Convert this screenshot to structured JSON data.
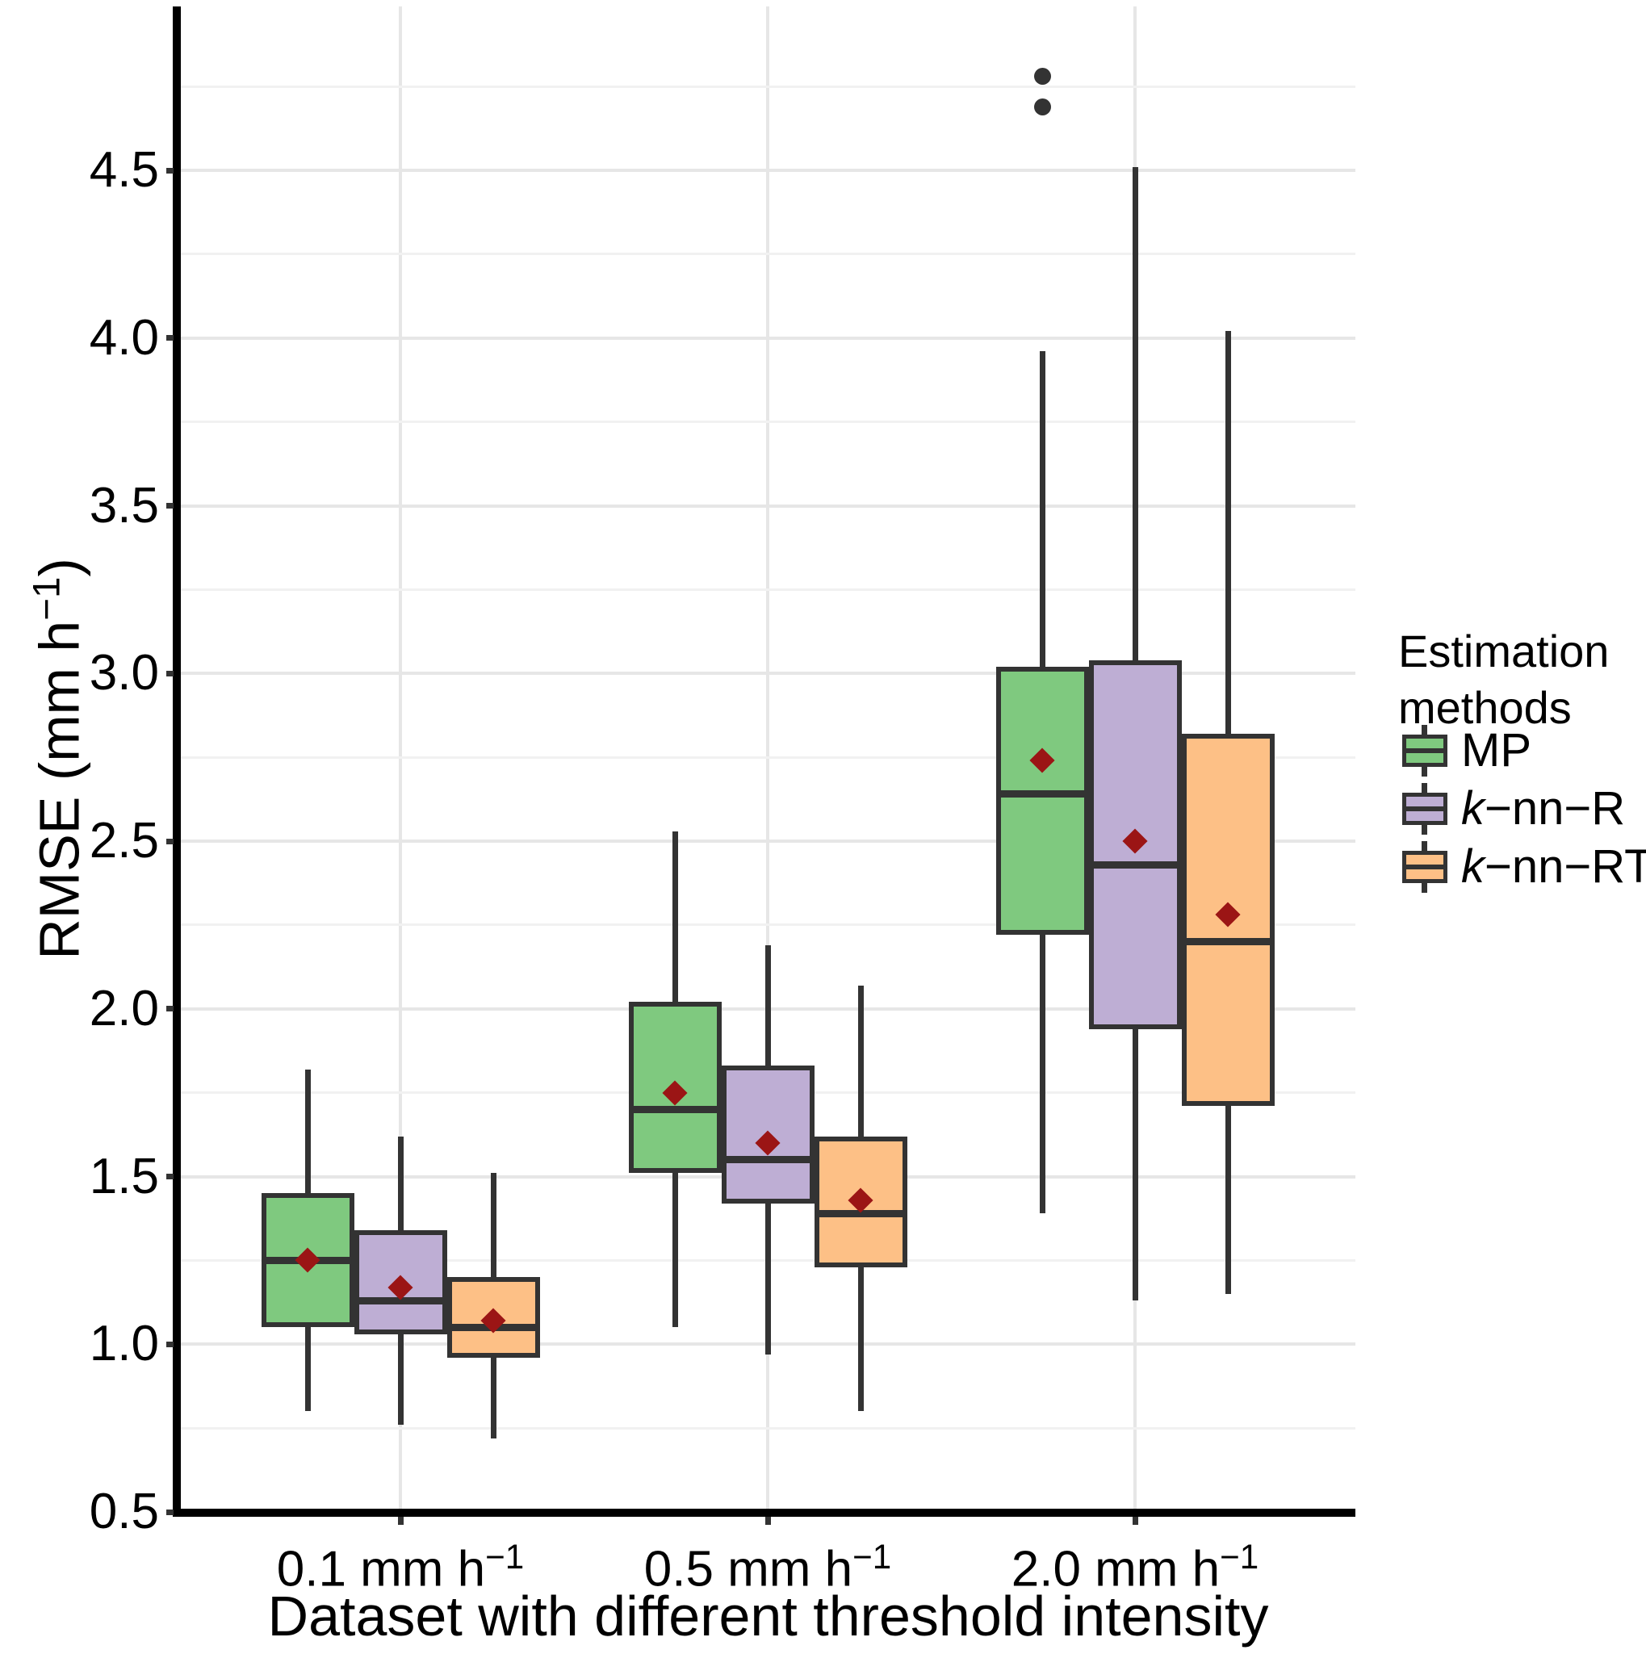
{
  "chart_data": {
    "type": "boxplot",
    "title": "",
    "xlabel": "Dataset with different threshold intensity",
    "ylabel": "RMSE  (mm h−1)",
    "ylabel_parts": {
      "base": "RMSE  (mm h",
      "sup": "−1",
      "end": ")"
    },
    "ylim": [
      0.5,
      5.0
    ],
    "yticks": [
      0.5,
      1.0,
      1.5,
      2.0,
      2.5,
      3.0,
      3.5,
      4.0,
      4.5
    ],
    "grid": true,
    "legend_position": "right",
    "x_categories": [
      {
        "base": "0.1 mm h",
        "sup": "−1"
      },
      {
        "base": "0.5 mm h",
        "sup": "−1"
      },
      {
        "base": "2.0 mm h",
        "sup": "−1"
      }
    ],
    "series": [
      {
        "name": "MP",
        "color": "#7FC97F",
        "boxes": [
          {
            "lo": 0.8,
            "q1": 1.05,
            "med": 1.25,
            "q3": 1.45,
            "hi": 1.82,
            "mean": 1.25,
            "outliers": []
          },
          {
            "lo": 1.05,
            "q1": 1.51,
            "med": 1.7,
            "q3": 2.02,
            "hi": 2.53,
            "mean": 1.75,
            "outliers": []
          },
          {
            "lo": 1.39,
            "q1": 2.22,
            "med": 2.64,
            "q3": 3.02,
            "hi": 3.96,
            "mean": 2.74,
            "outliers": [
              4.69,
              4.78
            ]
          }
        ]
      },
      {
        "name": "k−nn−R",
        "color": "#BEAED4",
        "boxes": [
          {
            "lo": 0.76,
            "q1": 1.03,
            "med": 1.13,
            "q3": 1.34,
            "hi": 1.62,
            "mean": 1.17,
            "outliers": []
          },
          {
            "lo": 0.97,
            "q1": 1.42,
            "med": 1.55,
            "q3": 1.83,
            "hi": 2.19,
            "mean": 1.6,
            "outliers": []
          },
          {
            "lo": 1.13,
            "q1": 1.94,
            "med": 2.43,
            "q3": 3.04,
            "hi": 4.51,
            "mean": 2.5,
            "outliers": []
          }
        ]
      },
      {
        "name": "k−nn−RT",
        "color": "#FDC086",
        "boxes": [
          {
            "lo": 0.72,
            "q1": 0.96,
            "med": 1.05,
            "q3": 1.2,
            "hi": 1.51,
            "mean": 1.07,
            "outliers": []
          },
          {
            "lo": 0.8,
            "q1": 1.23,
            "med": 1.39,
            "q3": 1.62,
            "hi": 2.07,
            "mean": 1.43,
            "outliers": []
          },
          {
            "lo": 1.15,
            "q1": 1.71,
            "med": 2.2,
            "q3": 2.82,
            "hi": 4.02,
            "mean": 2.28,
            "outliers": []
          }
        ]
      }
    ],
    "legend": {
      "title_line1": "Estimation",
      "title_line2": "methods",
      "items": [
        {
          "pre_italic": "",
          "text": "MP",
          "color": "#7FC97F"
        },
        {
          "pre_italic": "k",
          "text": "−nn−R",
          "color": "#BEAED4"
        },
        {
          "pre_italic": "k",
          "text": "−nn−RT",
          "color": "#FDC086"
        }
      ]
    },
    "style_colors": {
      "box_outline": "#333333",
      "median": "#333333",
      "mean_marker": "#9B1515",
      "outlier": "#333333",
      "grid_major": "#E6E6E6",
      "grid_minor": "#F1F1F1",
      "axis": "#000000"
    }
  }
}
